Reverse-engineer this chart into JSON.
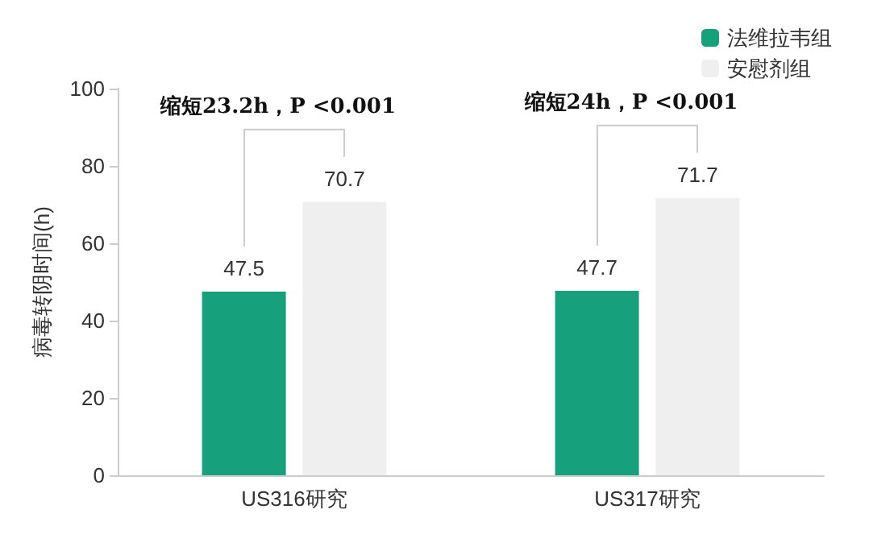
{
  "chart_data": {
    "type": "bar",
    "categories": [
      "US316研究",
      "US317研究"
    ],
    "series": [
      {
        "name": "法维拉韦组",
        "color": "#16a07c",
        "values": [
          47.5,
          47.7
        ]
      },
      {
        "name": "安慰剂组",
        "color": "#efefef",
        "values": [
          70.7,
          71.7
        ]
      }
    ],
    "ylabel": "病毒转阴时间(h)",
    "ylim": [
      0,
      100
    ],
    "yticks": [
      0,
      20,
      40,
      60,
      80,
      100
    ],
    "grid": false,
    "legend": "top right",
    "data_labels": true,
    "annotations": [
      "缩短23.2h，P <0.001",
      "缩短24h，P <0.001"
    ]
  }
}
